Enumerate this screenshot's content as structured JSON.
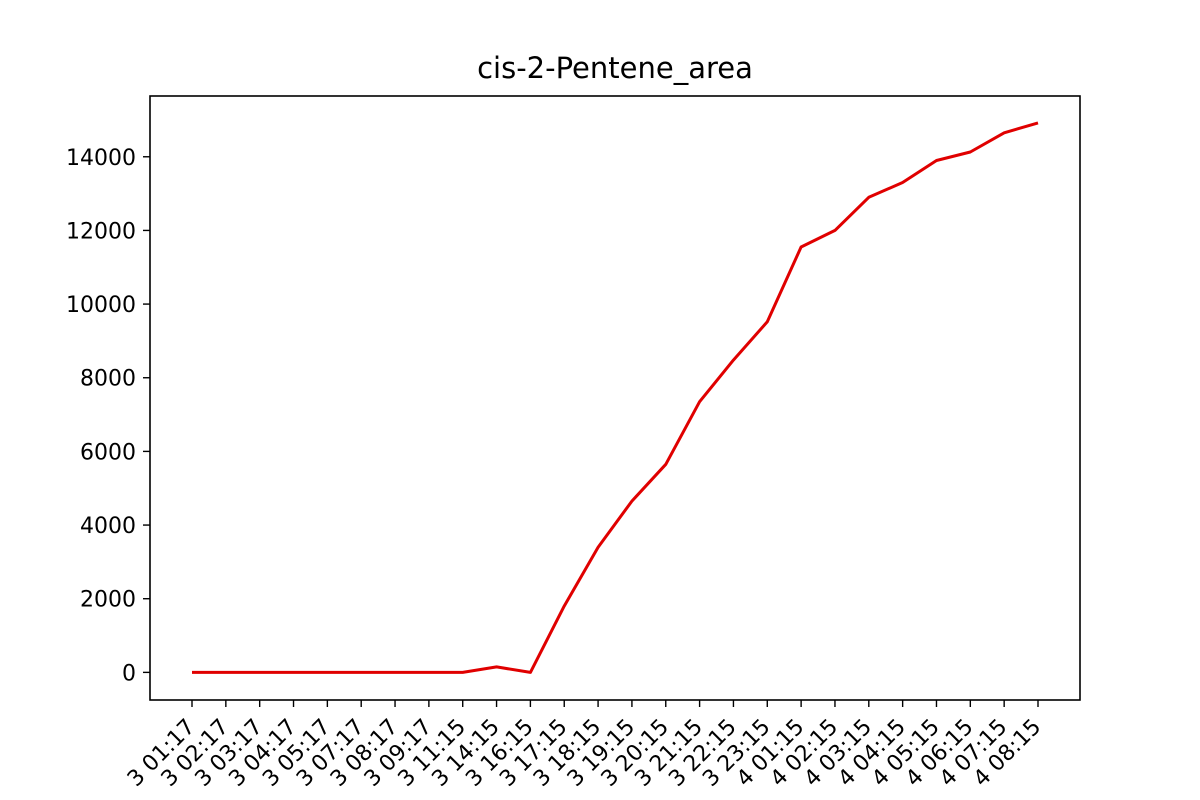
{
  "chart_data": {
    "type": "line",
    "title": "cis-2-Pentene_area",
    "xlabel": "",
    "ylabel": "",
    "grid": false,
    "legend": "none",
    "line_color": "#e00000",
    "x": [
      "3 01:17",
      "3 02:17",
      "3 03:17",
      "3 04:17",
      "3 05:17",
      "3 07:17",
      "3 08:17",
      "3 09:17",
      "3 11:15",
      "3 14:15",
      "3 16:15",
      "3 17:15",
      "3 18:15",
      "3 19:15",
      "3 20:15",
      "3 21:15",
      "3 22:15",
      "3 23:15",
      "4 01:15",
      "4 02:15",
      "4 03:15",
      "4 04:15",
      "4 05:15",
      "4 06:15",
      "4 07:15",
      "4 08:15"
    ],
    "series": [
      {
        "values": [
          0,
          0,
          0,
          0,
          0,
          0,
          0,
          0,
          0,
          150,
          0,
          1800,
          3400,
          4650,
          5650,
          7350,
          8480,
          9520,
          11550,
          12000,
          12900,
          13300,
          13900,
          14130,
          14650,
          14920
        ]
      }
    ],
    "yticks": [
      0,
      2000,
      4000,
      6000,
      8000,
      10000,
      12000,
      14000
    ],
    "ylim": [
      -750,
      15650
    ]
  }
}
